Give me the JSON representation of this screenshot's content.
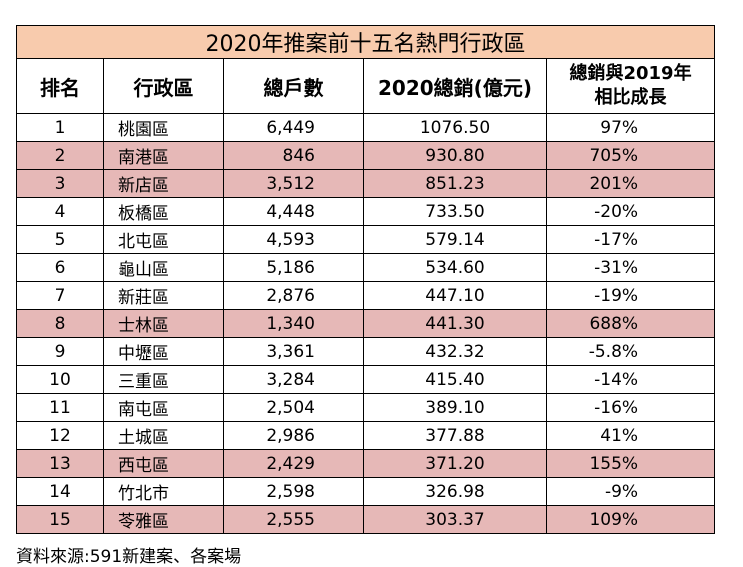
{
  "table": {
    "title": "2020年推案前十五名熱門行政區",
    "headers": {
      "rank": "排名",
      "district": "行政區",
      "units": "總戶數",
      "sales": "2020總銷(億元)",
      "growth_line1": "總銷與2019年",
      "growth_line2": "相比成長"
    },
    "highlight_color": "#e6b8b7",
    "title_bg_color": "#f8cbad",
    "rows": [
      {
        "rank": "1",
        "district": "桃園區",
        "units": "6,449",
        "sales": "1076.50",
        "growth": "97%",
        "highlight": false
      },
      {
        "rank": "2",
        "district": "南港區",
        "units": "846",
        "sales": "930.80",
        "growth": "705%",
        "highlight": true
      },
      {
        "rank": "3",
        "district": "新店區",
        "units": "3,512",
        "sales": "851.23",
        "growth": "201%",
        "highlight": true
      },
      {
        "rank": "4",
        "district": "板橋區",
        "units": "4,448",
        "sales": "733.50",
        "growth": "-20%",
        "highlight": false
      },
      {
        "rank": "5",
        "district": "北屯區",
        "units": "4,593",
        "sales": "579.14",
        "growth": "-17%",
        "highlight": false
      },
      {
        "rank": "6",
        "district": "龜山區",
        "units": "5,186",
        "sales": "534.60",
        "growth": "-31%",
        "highlight": false
      },
      {
        "rank": "7",
        "district": "新莊區",
        "units": "2,876",
        "sales": "447.10",
        "growth": "-19%",
        "highlight": false
      },
      {
        "rank": "8",
        "district": "士林區",
        "units": "1,340",
        "sales": "441.30",
        "growth": "688%",
        "highlight": true
      },
      {
        "rank": "9",
        "district": "中壢區",
        "units": "3,361",
        "sales": "432.32",
        "growth": "-5.8%",
        "highlight": false
      },
      {
        "rank": "10",
        "district": "三重區",
        "units": "3,284",
        "sales": "415.40",
        "growth": "-14%",
        "highlight": false
      },
      {
        "rank": "11",
        "district": "南屯區",
        "units": "2,504",
        "sales": "389.10",
        "growth": "-16%",
        "highlight": false
      },
      {
        "rank": "12",
        "district": "土城區",
        "units": "2,986",
        "sales": "377.88",
        "growth": "41%",
        "highlight": false
      },
      {
        "rank": "13",
        "district": "西屯區",
        "units": "2,429",
        "sales": "371.20",
        "growth": "155%",
        "highlight": true
      },
      {
        "rank": "14",
        "district": "竹北市",
        "units": "2,598",
        "sales": "326.98",
        "growth": "-9%",
        "highlight": false
      },
      {
        "rank": "15",
        "district": "苓雅區",
        "units": "2,555",
        "sales": "303.37",
        "growth": "109%",
        "highlight": true
      }
    ]
  },
  "source": "資料來源:591新建案、各案場"
}
